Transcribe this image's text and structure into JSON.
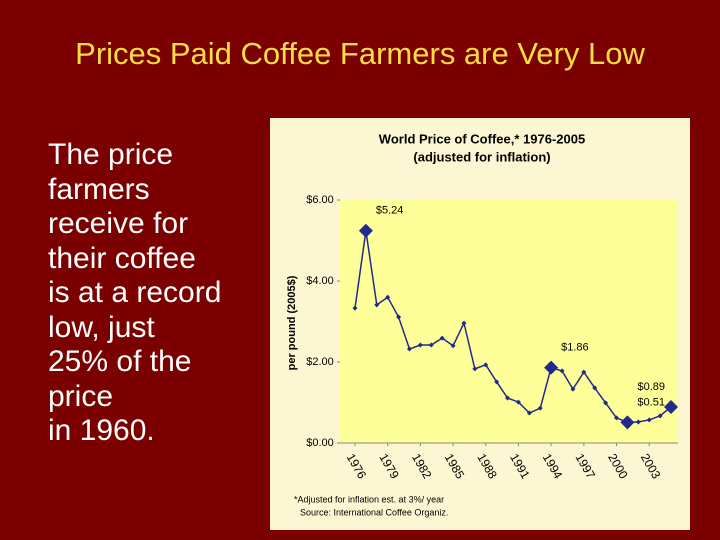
{
  "title": "Prices Paid Coffee Farmers are Very Low",
  "body_lines": [
    "The price",
    "farmers",
    "receive for",
    "their coffee",
    "is at a record",
    "low, just",
    "25% of the",
    "price",
    "in 1960."
  ],
  "chart_data": {
    "type": "line",
    "title": "World Price of Coffee,* 1976-2005",
    "subtitle": "(adjusted for inflation)",
    "y_label": "per pound (2005$)",
    "footnotes": [
      "*Adjusted for inflation est. at 3%/ year",
      "Source: International Coffee Organiz."
    ],
    "x": [
      1976,
      1977,
      1978,
      1979,
      1980,
      1981,
      1982,
      1983,
      1984,
      1985,
      1986,
      1987,
      1988,
      1989,
      1990,
      1991,
      1992,
      1993,
      1994,
      1995,
      1996,
      1997,
      1998,
      1999,
      2000,
      2001,
      2002,
      2003,
      2004,
      2005
    ],
    "series": [
      {
        "color": "#1f2a8c",
        "values": [
          3.33,
          5.24,
          3.41,
          3.6,
          3.11,
          2.32,
          2.42,
          2.42,
          2.59,
          2.4,
          2.96,
          1.83,
          1.93,
          1.51,
          1.11,
          1.01,
          0.74,
          0.86,
          1.86,
          1.78,
          1.33,
          1.75,
          1.36,
          0.99,
          0.62,
          0.51,
          0.52,
          0.57,
          0.67,
          0.89
        ],
        "value_labels": [
          null,
          "$5.24",
          null,
          null,
          null,
          null,
          null,
          null,
          null,
          null,
          null,
          null,
          null,
          null,
          null,
          null,
          null,
          null,
          "$1.86",
          null,
          null,
          null,
          null,
          null,
          null,
          "$0.51",
          null,
          null,
          null,
          "$0.89"
        ]
      }
    ],
    "xlim": [
      1976,
      2005
    ],
    "xticks": [
      1976,
      1979,
      1982,
      1985,
      1988,
      1991,
      1994,
      1997,
      2000,
      2003
    ],
    "ylim": [
      0,
      6
    ],
    "yticks": [
      {
        "value": 0,
        "label": "$0.00"
      },
      {
        "value": 2,
        "label": "$2.00"
      },
      {
        "value": 4,
        "label": "$4.00"
      },
      {
        "value": 6,
        "label": "$6.00"
      }
    ],
    "plot_background": "#ffff99",
    "grid": false
  }
}
